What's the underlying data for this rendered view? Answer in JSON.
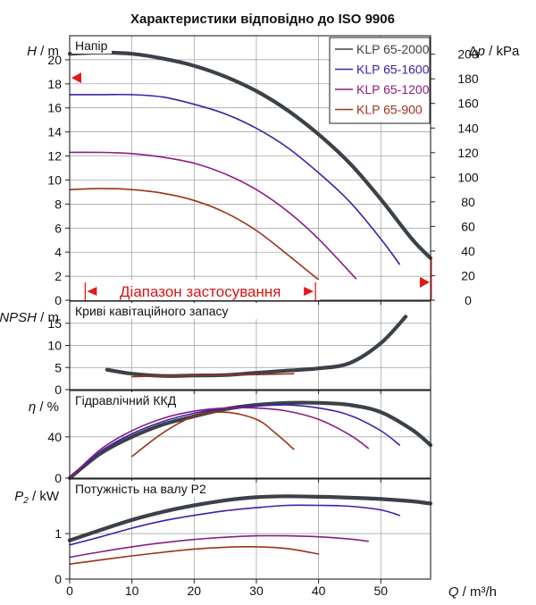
{
  "title": "Характеристики відповідно до ISO 9906",
  "colors": {
    "KLP 65-2000": "#3b4149",
    "KLP 65-1600": "#3a22a8",
    "KLP 65-1200": "#8b1b82",
    "KLP 65-900": "#9b3318",
    "grid": "#9a9a9a",
    "range_marker": "#e01919"
  },
  "range_label": "Діапазон застосування",
  "chart_data": [
    {
      "type": "line",
      "panel": "head",
      "title": "Напір",
      "ylabel": "H / m",
      "ylim": [
        0,
        22
      ],
      "yticks": [
        0,
        2,
        4,
        6,
        8,
        10,
        12,
        14,
        16,
        18,
        20
      ],
      "y2label": "Δp / kPa",
      "y2lim": [
        0,
        215
      ],
      "y2ticks": [
        0,
        20,
        40,
        60,
        80,
        100,
        120,
        140,
        160,
        180,
        200
      ],
      "xlim": [
        0,
        58
      ],
      "legend_placement": "top-right",
      "markers": {
        "left_y": 18.5,
        "right_y": 1.5,
        "range_start_x": 2.5,
        "range_end_x": 39.5
      },
      "series": [
        {
          "name": "KLP 65-2000",
          "x": [
            0,
            5,
            10,
            15,
            20,
            25,
            30,
            35,
            40,
            45,
            50,
            55,
            58
          ],
          "y": [
            20.5,
            20.6,
            20.5,
            20.1,
            19.5,
            18.6,
            17.4,
            15.8,
            13.8,
            11.4,
            8.4,
            5.1,
            3.5
          ]
        },
        {
          "name": "KLP 65-1600",
          "x": [
            0,
            5,
            10,
            15,
            20,
            25,
            30,
            35,
            40,
            45,
            50,
            53
          ],
          "y": [
            17.1,
            17.1,
            17.1,
            16.9,
            16.3,
            15.5,
            14.3,
            12.7,
            10.6,
            8.2,
            5.1,
            3.0
          ]
        },
        {
          "name": "KLP 65-1200",
          "x": [
            0,
            5,
            10,
            15,
            20,
            25,
            30,
            35,
            40,
            46
          ],
          "y": [
            12.3,
            12.3,
            12.2,
            11.9,
            11.4,
            10.5,
            9.2,
            7.4,
            5.1,
            1.8
          ]
        },
        {
          "name": "KLP 65-900",
          "x": [
            0,
            5,
            10,
            15,
            20,
            25,
            30,
            35,
            40
          ],
          "y": [
            9.2,
            9.3,
            9.2,
            8.9,
            8.3,
            7.3,
            5.8,
            3.8,
            1.7
          ]
        }
      ]
    },
    {
      "type": "line",
      "panel": "npsh",
      "title": "Криві кавітаційного запасу",
      "ylabel": "NPSH / m",
      "ylim": [
        0,
        20
      ],
      "yticks": [
        0,
        5,
        10,
        15
      ],
      "xlim": [
        0,
        58
      ],
      "series": [
        {
          "name": "KLP 65-2000",
          "x": [
            6,
            10,
            15,
            20,
            25,
            30,
            35,
            40,
            45,
            50,
            54
          ],
          "y": [
            4.5,
            3.6,
            3.1,
            3.2,
            3.3,
            3.8,
            4.3,
            4.8,
            6.0,
            10.5,
            16.5
          ]
        },
        {
          "name": "KLP 65-900",
          "x": [
            10,
            15,
            20,
            25,
            30,
            36
          ],
          "y": [
            2.9,
            3.1,
            3.2,
            3.3,
            3.4,
            3.6
          ]
        }
      ]
    },
    {
      "type": "line",
      "panel": "efficiency",
      "title": "Гідравлічний ККД",
      "ylabel": "η / %",
      "ylim": [
        0,
        85
      ],
      "yticks": [
        0,
        40
      ],
      "xlim": [
        0,
        58
      ],
      "series": [
        {
          "name": "KLP 65-2000",
          "x": [
            0,
            5,
            10,
            15,
            20,
            25,
            30,
            35,
            40,
            45,
            50,
            55,
            58
          ],
          "y": [
            0,
            24,
            40,
            52,
            60,
            67,
            71,
            73,
            73,
            71,
            64,
            47,
            32
          ]
        },
        {
          "name": "KLP 65-1600",
          "x": [
            0,
            5,
            10,
            15,
            20,
            25,
            30,
            35,
            40,
            45,
            50,
            53
          ],
          "y": [
            0,
            26,
            43,
            55,
            63,
            68,
            70,
            71,
            68,
            61,
            46,
            32
          ]
        },
        {
          "name": "KLP 65-1200",
          "x": [
            0,
            5,
            10,
            15,
            20,
            25,
            30,
            35,
            40,
            45,
            48
          ],
          "y": [
            0,
            28,
            46,
            58,
            65,
            68,
            68,
            65,
            57,
            42,
            29
          ]
        },
        {
          "name": "KLP 65-900",
          "x": [
            10,
            15,
            20,
            25,
            30,
            33,
            36
          ],
          "y": [
            21,
            44,
            60,
            64,
            57,
            44,
            28
          ]
        }
      ]
    },
    {
      "type": "line",
      "panel": "power",
      "title": "Потужність на валу P2",
      "ylabel": "P2 / kW",
      "ylim": [
        0,
        2.2
      ],
      "yticks": [
        0,
        1
      ],
      "xlabel": "Q / m³/h",
      "xlim": [
        0,
        58
      ],
      "xticks": [
        0,
        10,
        20,
        30,
        40,
        50
      ],
      "series": [
        {
          "name": "KLP 65-2000",
          "x": [
            0,
            5,
            10,
            15,
            20,
            25,
            30,
            35,
            40,
            45,
            50,
            55,
            58
          ],
          "y": [
            0.85,
            1.08,
            1.3,
            1.48,
            1.62,
            1.73,
            1.8,
            1.82,
            1.81,
            1.79,
            1.76,
            1.71,
            1.66
          ]
        },
        {
          "name": "KLP 65-1600",
          "x": [
            0,
            5,
            10,
            15,
            20,
            25,
            30,
            35,
            40,
            45,
            50,
            53
          ],
          "y": [
            0.75,
            0.93,
            1.12,
            1.28,
            1.4,
            1.5,
            1.57,
            1.62,
            1.62,
            1.6,
            1.52,
            1.4
          ]
        },
        {
          "name": "KLP 65-1200",
          "x": [
            0,
            5,
            10,
            15,
            20,
            25,
            30,
            35,
            40,
            45,
            48
          ],
          "y": [
            0.48,
            0.6,
            0.71,
            0.8,
            0.87,
            0.92,
            0.95,
            0.95,
            0.93,
            0.88,
            0.83
          ]
        },
        {
          "name": "KLP 65-900",
          "x": [
            0,
            5,
            10,
            15,
            20,
            25,
            30,
            35,
            40
          ],
          "y": [
            0.33,
            0.42,
            0.51,
            0.59,
            0.66,
            0.7,
            0.71,
            0.67,
            0.55
          ]
        }
      ]
    }
  ]
}
